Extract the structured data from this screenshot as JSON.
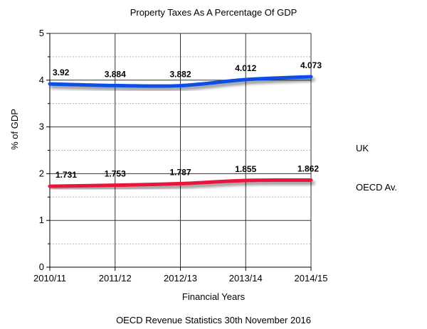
{
  "chart_data": {
    "type": "line",
    "title": "Property Taxes As A Percentage Of GDP",
    "xlabel": "Financial Years",
    "ylabel": "% of GDP",
    "categories": [
      "2010/11",
      "2011/12",
      "2012/13",
      "2013/14",
      "2014/15"
    ],
    "ylim": [
      0,
      5
    ],
    "yticks": [
      "0",
      "1",
      "2",
      "3",
      "4",
      "5"
    ],
    "grid": true,
    "legend_position": "right",
    "footnote": "OECD Revenue Statistics 30th November 2016",
    "series": [
      {
        "name": "UK",
        "values": [
          3.92,
          3.884,
          3.882,
          4.012,
          4.073
        ],
        "labels": [
          "3.92",
          "3.884",
          "3.882",
          "4.012",
          "4.073"
        ],
        "color": "#0a4fe6"
      },
      {
        "name": "OECD Av.",
        "values": [
          1.731,
          1.753,
          1.787,
          1.855,
          1.862
        ],
        "labels": [
          "1.731",
          "1.753",
          "1.787",
          "1.855",
          "1.862"
        ],
        "color": "#e8173a"
      }
    ]
  }
}
